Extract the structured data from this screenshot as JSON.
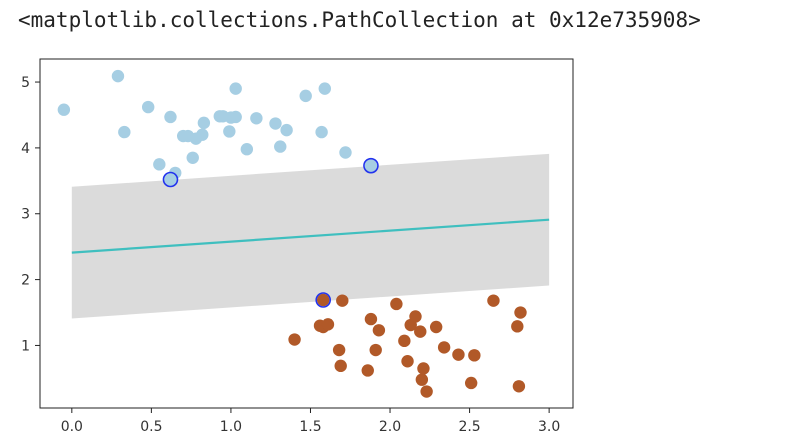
{
  "output_text": "<matplotlib.collections.PathCollection at 0x12e735908>",
  "chart_data": {
    "type": "scatter",
    "xlim": [
      -0.2,
      3.15
    ],
    "ylim": [
      0.05,
      5.35
    ],
    "xticks": [
      "0.0",
      "0.5",
      "1.0",
      "1.5",
      "2.0",
      "2.5",
      "3.0"
    ],
    "yticks": [
      "1",
      "2",
      "3",
      "4",
      "5"
    ],
    "grid": false,
    "decision_line": {
      "x": [
        0.0,
        3.0
      ],
      "y": [
        2.41,
        2.91
      ]
    },
    "margin_band": {
      "x": [
        0.0,
        3.0
      ],
      "lower": [
        1.41,
        1.91
      ],
      "upper": [
        3.41,
        3.91
      ]
    },
    "series": [
      {
        "color": "#a6cee3",
        "points": [
          [
            -0.05,
            4.58
          ],
          [
            0.29,
            5.09
          ],
          [
            0.33,
            4.24
          ],
          [
            0.48,
            4.62
          ],
          [
            0.55,
            3.75
          ],
          [
            0.62,
            4.47
          ],
          [
            0.65,
            3.62
          ],
          [
            0.7,
            4.18
          ],
          [
            0.73,
            4.18
          ],
          [
            0.76,
            3.85
          ],
          [
            0.78,
            4.14
          ],
          [
            0.82,
            4.2
          ],
          [
            0.83,
            4.38
          ],
          [
            0.93,
            4.48
          ],
          [
            0.95,
            4.48
          ],
          [
            0.99,
            4.25
          ],
          [
            1.0,
            4.46
          ],
          [
            1.03,
            4.9
          ],
          [
            1.03,
            4.47
          ],
          [
            1.1,
            3.98
          ],
          [
            1.16,
            4.45
          ],
          [
            1.28,
            4.37
          ],
          [
            1.31,
            4.02
          ],
          [
            1.35,
            4.27
          ],
          [
            1.47,
            4.79
          ],
          [
            1.57,
            4.24
          ],
          [
            1.59,
            4.9
          ],
          [
            1.72,
            3.93
          ],
          [
            0.62,
            3.52
          ],
          [
            1.88,
            3.73
          ]
        ]
      },
      {
        "color": "#b15928",
        "points": [
          [
            1.4,
            1.09
          ],
          [
            1.56,
            1.3
          ],
          [
            1.58,
            1.28
          ],
          [
            1.61,
            1.32
          ],
          [
            1.68,
            0.93
          ],
          [
            1.69,
            0.69
          ],
          [
            1.7,
            1.68
          ],
          [
            1.86,
            0.62
          ],
          [
            1.88,
            1.4
          ],
          [
            1.91,
            0.93
          ],
          [
            1.93,
            1.23
          ],
          [
            2.04,
            1.63
          ],
          [
            2.09,
            1.07
          ],
          [
            2.11,
            0.76
          ],
          [
            2.13,
            1.31
          ],
          [
            2.16,
            1.44
          ],
          [
            2.19,
            1.21
          ],
          [
            2.2,
            0.48
          ],
          [
            2.21,
            0.65
          ],
          [
            2.23,
            0.3
          ],
          [
            2.29,
            1.28
          ],
          [
            2.34,
            0.97
          ],
          [
            2.43,
            0.86
          ],
          [
            2.51,
            0.43
          ],
          [
            2.53,
            0.85
          ],
          [
            2.65,
            1.68
          ],
          [
            2.8,
            1.29
          ],
          [
            2.81,
            0.38
          ],
          [
            2.82,
            1.5
          ],
          [
            1.58,
            1.69
          ]
        ]
      }
    ],
    "support_vectors": [
      [
        0.62,
        3.52
      ],
      [
        1.88,
        3.73
      ],
      [
        1.58,
        1.69
      ]
    ]
  }
}
